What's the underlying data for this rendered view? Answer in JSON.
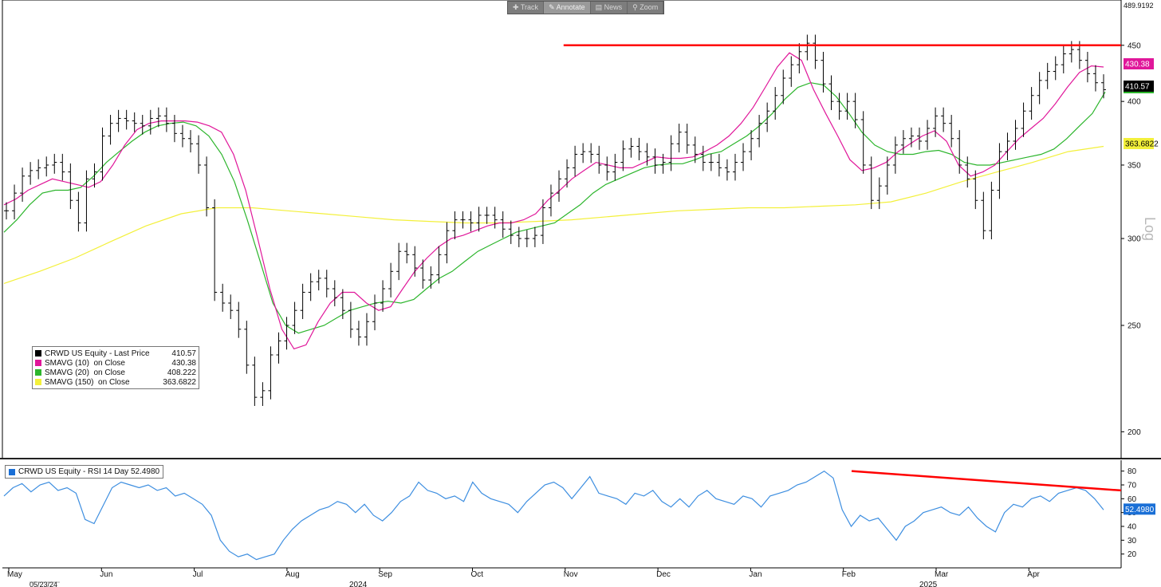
{
  "toolbar": {
    "items": [
      "Track",
      "Annotate",
      "News",
      "Zoom"
    ],
    "active": "Annotate"
  },
  "chart_data": [
    {
      "type": "line",
      "panel": "price",
      "scale": "log",
      "ylim": [
        190,
        489.9192
      ],
      "y_ticks": [
        200,
        250,
        300,
        350,
        400,
        450
      ],
      "y_top_label": "489.9192",
      "y_axis_title": "Log",
      "x_month_labels": [
        "May",
        "Jun",
        "Jul",
        "Aug",
        "Sep",
        "Oct",
        "Nov",
        "Dec",
        "Jan",
        "Feb",
        "Mar",
        "Apr"
      ],
      "x_year_labels": [
        "2024",
        "2025"
      ],
      "x_start_date_label": "05/23/24",
      "legend": [
        {
          "name": "CRWD US Equity - Last Price",
          "value": "410.57",
          "color": "#000000"
        },
        {
          "name": "SMAVG (10)  on Close",
          "value": "430.38",
          "color": "#e0179a"
        },
        {
          "name": "SMAVG (20)  on Close",
          "value": "408.222",
          "color": "#2cb52c"
        },
        {
          "name": "SMAVG (150)  on Close",
          "value": "363.6822",
          "color": "#f3f03a"
        }
      ],
      "value_tags": [
        {
          "value": "430.38",
          "color": "#e0179a"
        },
        {
          "value": "410.57",
          "color": "#000000"
        },
        {
          "value": "363.6822",
          "color": "#f3f03a"
        }
      ],
      "resistance_line": {
        "value": 450,
        "from_month": "Nov",
        "color": "#ff0000"
      },
      "series": [
        {
          "name": "Last Price",
          "style": "bars",
          "color": "#000000",
          "values": [
            318,
            330,
            342,
            346,
            348,
            350,
            352,
            345,
            325,
            310,
            340,
            345,
            372,
            382,
            386,
            384,
            382,
            380,
            386,
            388,
            382,
            374,
            370,
            366,
            350,
            320,
            268,
            262,
            258,
            248,
            230,
            215,
            218,
            235,
            242,
            250,
            258,
            268,
            274,
            276,
            270,
            265,
            258,
            248,
            244,
            252,
            262,
            270,
            280,
            292,
            290,
            282,
            275,
            278,
            290,
            305,
            312,
            312,
            310,
            315,
            315,
            312,
            306,
            302,
            300,
            300,
            302,
            320,
            330,
            340,
            348,
            358,
            360,
            358,
            350,
            345,
            352,
            362,
            364,
            360,
            356,
            350,
            352,
            366,
            375,
            365,
            358,
            352,
            352,
            348,
            345,
            352,
            360,
            370,
            382,
            392,
            405,
            420,
            432,
            444,
            452,
            436,
            415,
            400,
            392,
            400,
            385,
            350,
            325,
            335,
            350,
            365,
            370,
            372,
            368,
            378,
            388,
            382,
            370,
            350,
            340,
            325,
            305,
            332,
            360,
            368,
            378,
            392,
            405,
            418,
            426,
            432,
            442,
            446,
            436,
            424,
            416,
            410
          ]
        },
        {
          "name": "SMAVG (10)",
          "color": "#e0179a",
          "values": [
            322,
            326,
            332,
            336,
            340,
            338,
            336,
            334,
            338,
            350,
            365,
            377,
            382,
            384,
            384,
            384,
            383,
            380,
            375,
            358,
            332,
            300,
            270,
            248,
            238,
            240,
            252,
            262,
            268,
            268,
            262,
            258,
            260,
            270,
            280,
            288,
            295,
            300,
            302,
            305,
            308,
            310,
            310,
            312,
            316,
            325,
            332,
            340,
            346,
            352,
            350,
            348,
            348,
            352,
            356,
            355,
            355,
            356,
            360,
            365,
            372,
            382,
            395,
            412,
            430,
            443,
            436,
            410,
            390,
            372,
            354,
            346,
            348,
            352,
            360,
            366,
            372,
            376,
            368,
            350,
            342,
            345,
            350,
            360,
            370,
            378,
            386,
            398,
            412,
            425,
            431,
            430
          ]
        },
        {
          "name": "SMAVG (20)",
          "color": "#2cb52c",
          "values": [
            304,
            312,
            322,
            330,
            332,
            332,
            334,
            342,
            352,
            360,
            368,
            375,
            380,
            382,
            383,
            380,
            372,
            358,
            338,
            312,
            286,
            262,
            250,
            246,
            248,
            250,
            254,
            258,
            260,
            262,
            263,
            262,
            264,
            270,
            276,
            280,
            286,
            292,
            296,
            300,
            304,
            306,
            308,
            310,
            316,
            322,
            330,
            336,
            340,
            344,
            348,
            350,
            351,
            351,
            354,
            358,
            360,
            366,
            372,
            380,
            390,
            402,
            412,
            416,
            414,
            404,
            390,
            375,
            365,
            360,
            358,
            358,
            360,
            361,
            358,
            352,
            350,
            350,
            352,
            354,
            356,
            358,
            362,
            370,
            380,
            390,
            408
          ]
        },
        {
          "name": "SMAVG (150)",
          "color": "#f3f03a",
          "values": [
            273,
            280,
            288,
            298,
            308,
            316,
            320,
            320,
            318,
            316,
            314,
            312,
            311,
            310,
            310,
            311,
            312,
            314,
            316,
            318,
            319,
            320,
            320,
            321,
            322,
            324,
            330,
            338,
            345,
            352,
            360,
            364
          ]
        }
      ]
    },
    {
      "type": "line",
      "panel": "rsi",
      "ylim": [
        10,
        85
      ],
      "y_ticks": [
        20,
        30,
        40,
        50,
        60,
        70,
        80
      ],
      "legend": [
        {
          "name": "CRWD US Equity - RSI 14 Day",
          "value": "52.4980",
          "color": "#1a6fd6"
        }
      ],
      "value_tags": [
        {
          "value": "52.4980",
          "color": "#1a6fd6"
        }
      ],
      "trend_line": {
        "from": 80,
        "to": 66,
        "color": "#ff0000"
      },
      "series": [
        {
          "name": "RSI 14 Day",
          "color": "#3d8ee0",
          "values": [
            62,
            68,
            71,
            65,
            70,
            72,
            66,
            68,
            64,
            45,
            42,
            55,
            68,
            72,
            70,
            68,
            70,
            66,
            68,
            62,
            64,
            60,
            56,
            48,
            30,
            22,
            18,
            20,
            16,
            18,
            20,
            30,
            38,
            44,
            48,
            52,
            54,
            58,
            56,
            50,
            56,
            48,
            44,
            50,
            58,
            62,
            72,
            66,
            64,
            60,
            62,
            58,
            72,
            64,
            60,
            58,
            56,
            50,
            58,
            64,
            70,
            72,
            68,
            60,
            68,
            76,
            64,
            62,
            60,
            56,
            64,
            62,
            66,
            58,
            54,
            60,
            54,
            62,
            66,
            60,
            58,
            56,
            62,
            60,
            54,
            62,
            64,
            66,
            70,
            72,
            76,
            80,
            75,
            52,
            40,
            48,
            44,
            46,
            38,
            30,
            40,
            44,
            50,
            52,
            54,
            50,
            48,
            54,
            46,
            40,
            36,
            50,
            56,
            54,
            60,
            62,
            58,
            64,
            66,
            68,
            66,
            60,
            52
          ]
        }
      ]
    }
  ]
}
